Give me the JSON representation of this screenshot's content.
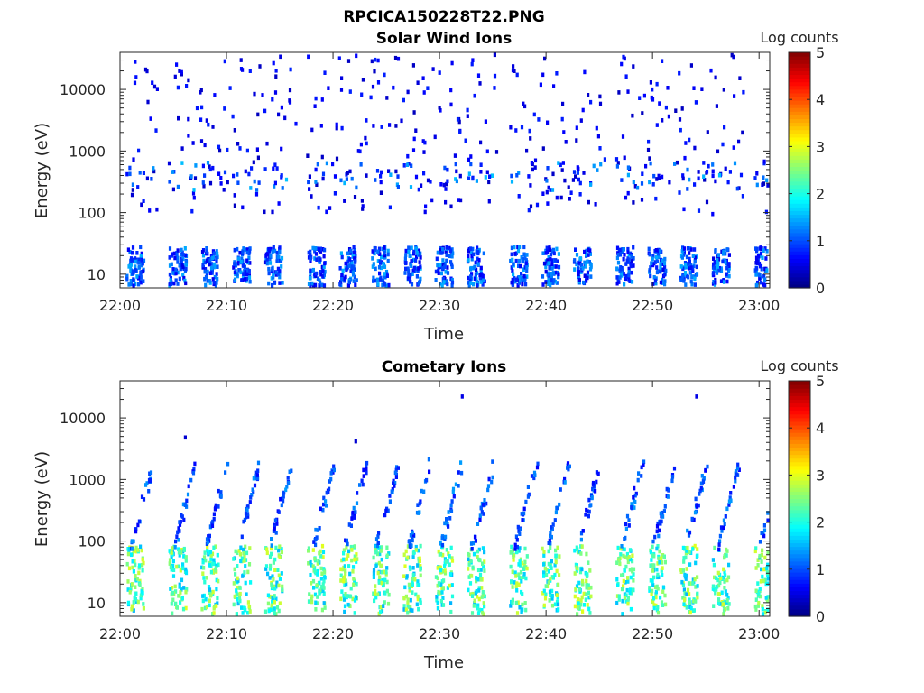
{
  "figure": {
    "title": "RPCICA150228T22.PNG"
  },
  "chart_data": [
    {
      "type": "heatmap",
      "title": "Solar Wind Ions",
      "xlabel": "Time",
      "ylabel": "Energy (eV)",
      "yscale": "log",
      "xlim": [
        "22:00",
        "23:01"
      ],
      "ylim": [
        6,
        40000
      ],
      "xticklabels": [
        "22:00",
        "22:10",
        "22:20",
        "22:30",
        "22:40",
        "22:50",
        "23:00"
      ],
      "yticklabels": [
        "10",
        "100",
        "1000",
        "10000"
      ],
      "colorbar": {
        "label": "Log counts",
        "range": [
          0,
          5
        ],
        "ticks": [
          "0",
          "1",
          "2",
          "3",
          "4",
          "5"
        ],
        "colormap": "jet"
      },
      "bursts": {
        "times": [
          "22:01",
          "22:05",
          "22:08",
          "22:11",
          "22:14",
          "22:18",
          "22:21",
          "22:24",
          "22:27",
          "22:30",
          "22:33",
          "22:37",
          "22:40",
          "22:43",
          "22:47",
          "22:50",
          "22:53",
          "22:56",
          "23:00"
        ],
        "low_band_eV": [
          6,
          30
        ],
        "low_band_log_counts": [
          0.5,
          1.5
        ],
        "sparse_range_eV": [
          100,
          40000
        ],
        "sparse_log_counts": 0.3
      }
    },
    {
      "type": "heatmap",
      "title": "Cometary Ions",
      "xlabel": "Time",
      "ylabel": "Energy (eV)",
      "yscale": "log",
      "xlim": [
        "22:00",
        "23:01"
      ],
      "ylim": [
        6,
        40000
      ],
      "xticklabels": [
        "22:00",
        "22:10",
        "22:20",
        "22:30",
        "22:40",
        "22:50",
        "23:00"
      ],
      "yticklabels": [
        "10",
        "100",
        "1000",
        "10000"
      ],
      "colorbar": {
        "label": "Log counts",
        "range": [
          0,
          5
        ],
        "ticks": [
          "0",
          "1",
          "2",
          "3",
          "4",
          "5"
        ],
        "colormap": "jet"
      },
      "bursts": {
        "times": [
          "22:01",
          "22:05",
          "22:08",
          "22:11",
          "22:14",
          "22:18",
          "22:21",
          "22:24",
          "22:27",
          "22:30",
          "22:33",
          "22:37",
          "22:40",
          "22:43",
          "22:47",
          "22:50",
          "22:53",
          "22:56",
          "23:00"
        ],
        "low_band_eV": [
          6,
          90
        ],
        "low_band_log_counts": [
          1.5,
          3.0
        ],
        "ramp_range_eV": [
          90,
          2000
        ],
        "ramp_log_counts": 0.6,
        "outliers": [
          {
            "time": "22:32",
            "energy_eV": 24000,
            "log_counts": 0.5
          },
          {
            "time": "22:54",
            "energy_eV": 24000,
            "log_counts": 0.5
          },
          {
            "time": "22:06",
            "energy_eV": 5200,
            "log_counts": 0.4
          },
          {
            "time": "22:22",
            "energy_eV": 4500,
            "log_counts": 0.4
          }
        ]
      }
    }
  ]
}
